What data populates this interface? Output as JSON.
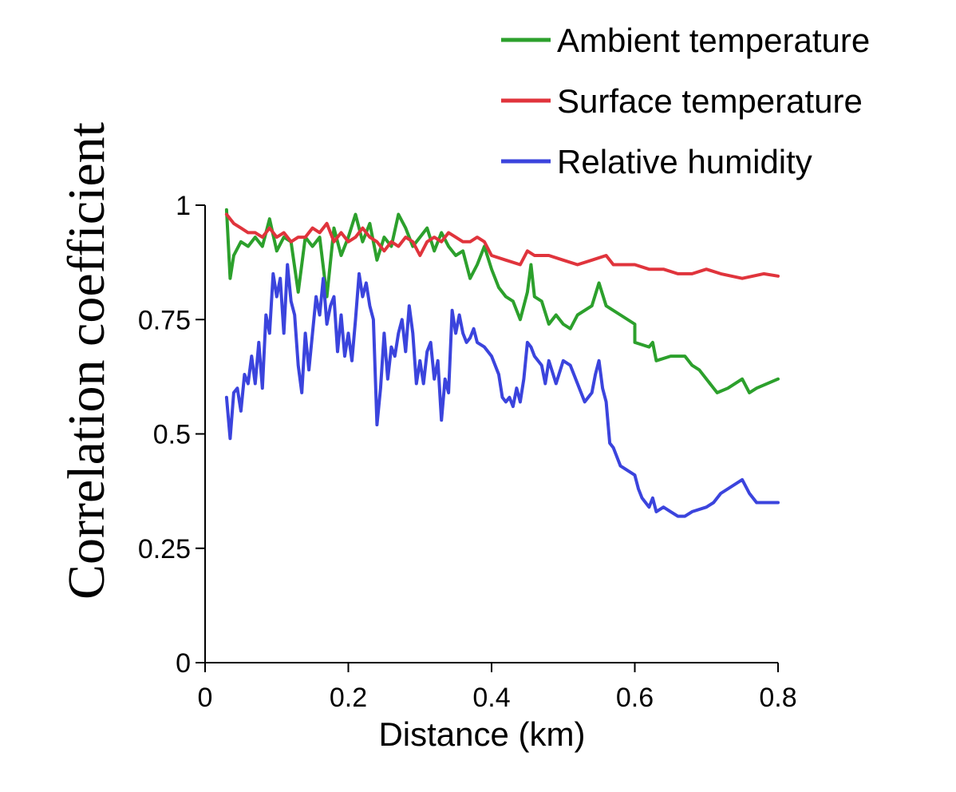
{
  "chart_data": {
    "type": "line",
    "xlabel": "Distance (km)",
    "ylabel": "Correlation coefficient",
    "xlim": [
      0,
      0.8
    ],
    "ylim": [
      0,
      1
    ],
    "xticks": [
      0,
      0.2,
      0.4,
      0.6,
      0.8
    ],
    "xtick_labels": [
      "0",
      "0.2",
      "0.4",
      "0.6",
      "0.8"
    ],
    "yticks": [
      0,
      0.25,
      0.5,
      0.75,
      1
    ],
    "ytick_labels": [
      "0",
      "0.25",
      "0.5",
      "0.75",
      "1"
    ],
    "grid": false,
    "legend_position": "top-right",
    "series": [
      {
        "name": "Ambient temperature",
        "color": "#2ca02c",
        "points": [
          [
            0.03,
            0.99
          ],
          [
            0.035,
            0.84
          ],
          [
            0.04,
            0.89
          ],
          [
            0.05,
            0.92
          ],
          [
            0.06,
            0.91
          ],
          [
            0.07,
            0.93
          ],
          [
            0.08,
            0.91
          ],
          [
            0.09,
            0.97
          ],
          [
            0.1,
            0.9
          ],
          [
            0.11,
            0.93
          ],
          [
            0.12,
            0.92
          ],
          [
            0.13,
            0.81
          ],
          [
            0.14,
            0.93
          ],
          [
            0.15,
            0.91
          ],
          [
            0.16,
            0.93
          ],
          [
            0.17,
            0.8
          ],
          [
            0.18,
            0.95
          ],
          [
            0.19,
            0.89
          ],
          [
            0.2,
            0.93
          ],
          [
            0.21,
            0.98
          ],
          [
            0.22,
            0.92
          ],
          [
            0.23,
            0.96
          ],
          [
            0.24,
            0.88
          ],
          [
            0.25,
            0.93
          ],
          [
            0.26,
            0.91
          ],
          [
            0.27,
            0.98
          ],
          [
            0.28,
            0.95
          ],
          [
            0.29,
            0.91
          ],
          [
            0.3,
            0.93
          ],
          [
            0.31,
            0.95
          ],
          [
            0.32,
            0.9
          ],
          [
            0.33,
            0.94
          ],
          [
            0.34,
            0.91
          ],
          [
            0.35,
            0.89
          ],
          [
            0.36,
            0.9
          ],
          [
            0.37,
            0.84
          ],
          [
            0.38,
            0.87
          ],
          [
            0.39,
            0.91
          ],
          [
            0.4,
            0.86
          ],
          [
            0.41,
            0.82
          ],
          [
            0.42,
            0.8
          ],
          [
            0.43,
            0.79
          ],
          [
            0.44,
            0.75
          ],
          [
            0.45,
            0.81
          ],
          [
            0.455,
            0.87
          ],
          [
            0.46,
            0.8
          ],
          [
            0.47,
            0.79
          ],
          [
            0.48,
            0.74
          ],
          [
            0.49,
            0.76
          ],
          [
            0.5,
            0.74
          ],
          [
            0.51,
            0.73
          ],
          [
            0.52,
            0.76
          ],
          [
            0.54,
            0.78
          ],
          [
            0.55,
            0.83
          ],
          [
            0.56,
            0.78
          ],
          [
            0.58,
            0.76
          ],
          [
            0.6,
            0.74
          ],
          [
            0.6,
            0.7
          ],
          [
            0.62,
            0.69
          ],
          [
            0.625,
            0.7
          ],
          [
            0.63,
            0.66
          ],
          [
            0.65,
            0.67
          ],
          [
            0.67,
            0.67
          ],
          [
            0.68,
            0.65
          ],
          [
            0.69,
            0.64
          ],
          [
            0.71,
            0.6
          ],
          [
            0.715,
            0.59
          ],
          [
            0.73,
            0.6
          ],
          [
            0.75,
            0.62
          ],
          [
            0.76,
            0.59
          ],
          [
            0.77,
            0.6
          ],
          [
            0.8,
            0.62
          ]
        ]
      },
      {
        "name": "Surface temperature",
        "color": "#e0343c",
        "points": [
          [
            0.03,
            0.98
          ],
          [
            0.04,
            0.96
          ],
          [
            0.05,
            0.95
          ],
          [
            0.06,
            0.94
          ],
          [
            0.07,
            0.94
          ],
          [
            0.08,
            0.93
          ],
          [
            0.09,
            0.95
          ],
          [
            0.1,
            0.93
          ],
          [
            0.11,
            0.94
          ],
          [
            0.12,
            0.92
          ],
          [
            0.13,
            0.93
          ],
          [
            0.14,
            0.93
          ],
          [
            0.15,
            0.95
          ],
          [
            0.16,
            0.94
          ],
          [
            0.17,
            0.96
          ],
          [
            0.18,
            0.92
          ],
          [
            0.19,
            0.94
          ],
          [
            0.2,
            0.92
          ],
          [
            0.21,
            0.93
          ],
          [
            0.22,
            0.95
          ],
          [
            0.23,
            0.93
          ],
          [
            0.24,
            0.92
          ],
          [
            0.25,
            0.9
          ],
          [
            0.26,
            0.92
          ],
          [
            0.27,
            0.91
          ],
          [
            0.28,
            0.93
          ],
          [
            0.29,
            0.92
          ],
          [
            0.3,
            0.89
          ],
          [
            0.31,
            0.92
          ],
          [
            0.32,
            0.93
          ],
          [
            0.33,
            0.92
          ],
          [
            0.34,
            0.94
          ],
          [
            0.35,
            0.93
          ],
          [
            0.36,
            0.92
          ],
          [
            0.37,
            0.92
          ],
          [
            0.38,
            0.93
          ],
          [
            0.39,
            0.92
          ],
          [
            0.4,
            0.89
          ],
          [
            0.42,
            0.88
          ],
          [
            0.44,
            0.87
          ],
          [
            0.45,
            0.9
          ],
          [
            0.46,
            0.89
          ],
          [
            0.48,
            0.89
          ],
          [
            0.5,
            0.88
          ],
          [
            0.52,
            0.87
          ],
          [
            0.54,
            0.88
          ],
          [
            0.56,
            0.89
          ],
          [
            0.57,
            0.87
          ],
          [
            0.6,
            0.87
          ],
          [
            0.62,
            0.86
          ],
          [
            0.64,
            0.86
          ],
          [
            0.66,
            0.85
          ],
          [
            0.68,
            0.85
          ],
          [
            0.7,
            0.86
          ],
          [
            0.72,
            0.85
          ],
          [
            0.75,
            0.84
          ],
          [
            0.78,
            0.85
          ],
          [
            0.8,
            0.845
          ]
        ]
      },
      {
        "name": "Relative humidity",
        "color": "#3b44dd",
        "points": [
          [
            0.03,
            0.58
          ],
          [
            0.035,
            0.49
          ],
          [
            0.04,
            0.59
          ],
          [
            0.045,
            0.6
          ],
          [
            0.05,
            0.55
          ],
          [
            0.055,
            0.63
          ],
          [
            0.06,
            0.61
          ],
          [
            0.065,
            0.67
          ],
          [
            0.07,
            0.61
          ],
          [
            0.075,
            0.7
          ],
          [
            0.08,
            0.6
          ],
          [
            0.085,
            0.76
          ],
          [
            0.09,
            0.72
          ],
          [
            0.095,
            0.85
          ],
          [
            0.1,
            0.8
          ],
          [
            0.105,
            0.84
          ],
          [
            0.11,
            0.72
          ],
          [
            0.115,
            0.87
          ],
          [
            0.12,
            0.79
          ],
          [
            0.125,
            0.76
          ],
          [
            0.13,
            0.65
          ],
          [
            0.135,
            0.59
          ],
          [
            0.14,
            0.72
          ],
          [
            0.145,
            0.64
          ],
          [
            0.15,
            0.72
          ],
          [
            0.155,
            0.8
          ],
          [
            0.16,
            0.76
          ],
          [
            0.165,
            0.84
          ],
          [
            0.17,
            0.74
          ],
          [
            0.175,
            0.78
          ],
          [
            0.18,
            0.8
          ],
          [
            0.185,
            0.68
          ],
          [
            0.19,
            0.76
          ],
          [
            0.195,
            0.67
          ],
          [
            0.2,
            0.72
          ],
          [
            0.205,
            0.66
          ],
          [
            0.21,
            0.75
          ],
          [
            0.215,
            0.85
          ],
          [
            0.22,
            0.8
          ],
          [
            0.225,
            0.83
          ],
          [
            0.23,
            0.78
          ],
          [
            0.235,
            0.75
          ],
          [
            0.24,
            0.52
          ],
          [
            0.245,
            0.6
          ],
          [
            0.25,
            0.72
          ],
          [
            0.255,
            0.62
          ],
          [
            0.26,
            0.69
          ],
          [
            0.265,
            0.67
          ],
          [
            0.27,
            0.72
          ],
          [
            0.275,
            0.75
          ],
          [
            0.28,
            0.68
          ],
          [
            0.285,
            0.78
          ],
          [
            0.29,
            0.72
          ],
          [
            0.295,
            0.61
          ],
          [
            0.3,
            0.66
          ],
          [
            0.305,
            0.61
          ],
          [
            0.31,
            0.68
          ],
          [
            0.315,
            0.7
          ],
          [
            0.32,
            0.62
          ],
          [
            0.325,
            0.66
          ],
          [
            0.33,
            0.53
          ],
          [
            0.335,
            0.62
          ],
          [
            0.34,
            0.59
          ],
          [
            0.345,
            0.77
          ],
          [
            0.35,
            0.72
          ],
          [
            0.355,
            0.76
          ],
          [
            0.36,
            0.72
          ],
          [
            0.365,
            0.7
          ],
          [
            0.37,
            0.71
          ],
          [
            0.375,
            0.73
          ],
          [
            0.38,
            0.7
          ],
          [
            0.39,
            0.69
          ],
          [
            0.4,
            0.67
          ],
          [
            0.41,
            0.63
          ],
          [
            0.415,
            0.58
          ],
          [
            0.42,
            0.57
          ],
          [
            0.425,
            0.58
          ],
          [
            0.43,
            0.56
          ],
          [
            0.435,
            0.6
          ],
          [
            0.44,
            0.57
          ],
          [
            0.445,
            0.62
          ],
          [
            0.45,
            0.7
          ],
          [
            0.455,
            0.69
          ],
          [
            0.46,
            0.67
          ],
          [
            0.47,
            0.65
          ],
          [
            0.475,
            0.61
          ],
          [
            0.48,
            0.66
          ],
          [
            0.49,
            0.61
          ],
          [
            0.5,
            0.66
          ],
          [
            0.51,
            0.65
          ],
          [
            0.52,
            0.61
          ],
          [
            0.53,
            0.57
          ],
          [
            0.54,
            0.59
          ],
          [
            0.545,
            0.63
          ],
          [
            0.55,
            0.66
          ],
          [
            0.555,
            0.6
          ],
          [
            0.56,
            0.57
          ],
          [
            0.565,
            0.48
          ],
          [
            0.57,
            0.47
          ],
          [
            0.58,
            0.43
          ],
          [
            0.59,
            0.42
          ],
          [
            0.6,
            0.41
          ],
          [
            0.605,
            0.38
          ],
          [
            0.61,
            0.36
          ],
          [
            0.615,
            0.35
          ],
          [
            0.62,
            0.34
          ],
          [
            0.625,
            0.36
          ],
          [
            0.63,
            0.33
          ],
          [
            0.64,
            0.34
          ],
          [
            0.65,
            0.33
          ],
          [
            0.66,
            0.32
          ],
          [
            0.67,
            0.32
          ],
          [
            0.68,
            0.33
          ],
          [
            0.7,
            0.34
          ],
          [
            0.71,
            0.35
          ],
          [
            0.72,
            0.37
          ],
          [
            0.75,
            0.4
          ],
          [
            0.76,
            0.37
          ],
          [
            0.77,
            0.35
          ],
          [
            0.8,
            0.35
          ]
        ]
      }
    ]
  }
}
